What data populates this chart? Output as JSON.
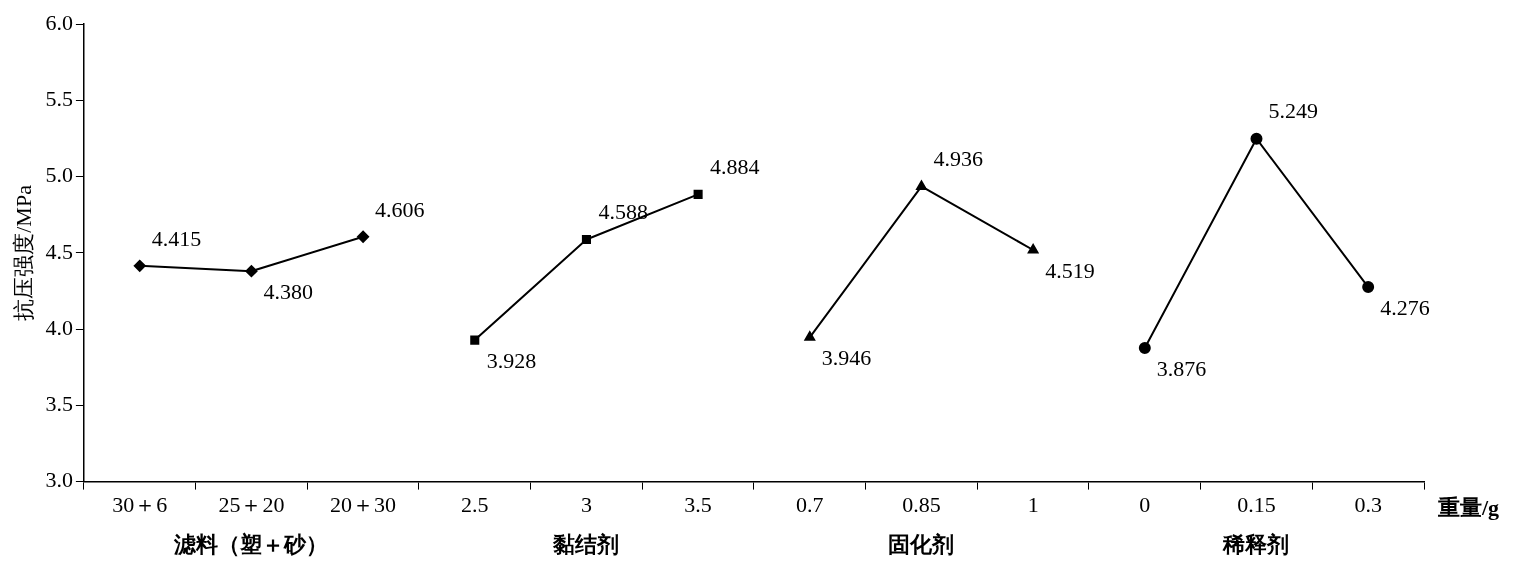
{
  "chart_data": {
    "type": "line",
    "ylabel": "抗压强度/MPa",
    "xlabel": "重量/g",
    "categories": [
      "30＋6",
      "25＋20",
      "20＋30",
      "2.5",
      "3",
      "3.5",
      "0.7",
      "0.85",
      "1",
      "0",
      "0.15",
      "0.3"
    ],
    "ylim": [
      3.0,
      6.0
    ],
    "yticks": [
      {
        "value": 3,
        "label": "3.0"
      },
      {
        "value": 3.5,
        "label": "3.5"
      },
      {
        "value": 4,
        "label": "4.0"
      },
      {
        "value": 4.5,
        "label": "4.5"
      },
      {
        "value": 5,
        "label": "5.0"
      },
      {
        "value": 5.5,
        "label": "5.5"
      },
      {
        "value": 6,
        "label": "6.0"
      }
    ],
    "annotations": [
      "滤料（塑＋砂）",
      "黏结剂",
      "固化剂",
      "稀释剂"
    ],
    "grid": false,
    "legend": false,
    "line_style": "solid",
    "series": [
      {
        "color": "#000000",
        "marker": "diamond",
        "values": [
          4.415,
          4.38,
          4.606,
          null,
          null,
          null,
          null,
          null,
          null,
          null,
          null,
          null
        ],
        "value_labels": [
          "4.415",
          "4.380",
          "4.606",
          null,
          null,
          null,
          null,
          null,
          null,
          null,
          null,
          null
        ]
      },
      {
        "color": "#000000",
        "marker": "square",
        "values": [
          null,
          null,
          null,
          3.928,
          4.588,
          4.884,
          null,
          null,
          null,
          null,
          null,
          null
        ],
        "value_labels": [
          null,
          null,
          null,
          "3.928",
          "4.588",
          "4.884",
          null,
          null,
          null,
          null,
          null,
          null
        ]
      },
      {
        "color": "#000000",
        "marker": "triangle",
        "values": [
          null,
          null,
          null,
          null,
          null,
          null,
          3.946,
          4.936,
          4.519,
          null,
          null,
          null
        ],
        "value_labels": [
          null,
          null,
          null,
          null,
          null,
          null,
          "3.946",
          "4.936",
          "4.519",
          null,
          null,
          null
        ]
      },
      {
        "color": "#000000",
        "marker": "circle",
        "values": [
          null,
          null,
          null,
          null,
          null,
          null,
          null,
          null,
          null,
          3.876,
          5.249,
          4.276
        ],
        "value_labels": [
          null,
          null,
          null,
          null,
          null,
          null,
          null,
          null,
          null,
          "3.876",
          "5.249",
          "4.276"
        ]
      }
    ]
  }
}
